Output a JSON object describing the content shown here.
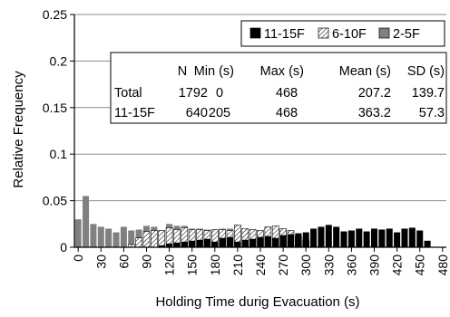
{
  "chart_data": {
    "type": "bar",
    "title": "",
    "xlabel": "Holding Time durig Evacuation (s)",
    "ylabel": "Relative Frequency",
    "ylim": [
      0,
      0.25
    ],
    "yticks": [
      "0",
      "0.05",
      "0.1",
      "0.15",
      "0.2",
      "0.25"
    ],
    "bin_width_s": 10,
    "x_tick_labels": [
      "0",
      "30",
      "60",
      "90",
      "120",
      "150",
      "180",
      "210",
      "240",
      "270",
      "300",
      "330",
      "360",
      "390",
      "420",
      "450",
      "480"
    ],
    "x_tick_values": [
      0,
      30,
      60,
      90,
      120,
      150,
      180,
      210,
      240,
      270,
      300,
      330,
      360,
      390,
      420,
      450,
      480
    ],
    "grid": "horizontal",
    "legend_position": "top-right",
    "series": [
      {
        "name": "11-15F",
        "color": "#000000",
        "pattern": "solid",
        "x": [
          110,
          120,
          130,
          140,
          150,
          160,
          170,
          180,
          190,
          200,
          210,
          220,
          230,
          240,
          250,
          260,
          270,
          280,
          290,
          300,
          310,
          320,
          330,
          340,
          350,
          360,
          370,
          380,
          390,
          400,
          410,
          420,
          430,
          440,
          450,
          460
        ],
        "values": [
          0.002,
          0.004,
          0.005,
          0.006,
          0.007,
          0.008,
          0.009,
          0.006,
          0.01,
          0.011,
          0.006,
          0.008,
          0.009,
          0.011,
          0.012,
          0.01,
          0.013,
          0.014,
          0.015,
          0.016,
          0.02,
          0.022,
          0.024,
          0.022,
          0.017,
          0.018,
          0.02,
          0.017,
          0.02,
          0.019,
          0.02,
          0.016,
          0.02,
          0.021,
          0.018,
          0.007
        ]
      },
      {
        "name": "6-10F",
        "color": "#000000",
        "pattern": "hatched",
        "x": [
          70,
          80,
          90,
          100,
          110,
          120,
          130,
          140,
          150,
          160,
          170,
          180,
          190,
          200,
          210,
          220,
          230,
          240,
          250,
          260,
          270,
          280,
          290,
          300
        ],
        "values": [
          0.003,
          0.01,
          0.017,
          0.018,
          0.018,
          0.021,
          0.019,
          0.021,
          0.019,
          0.019,
          0.018,
          0.019,
          0.019,
          0.018,
          0.024,
          0.02,
          0.019,
          0.018,
          0.022,
          0.023,
          0.02,
          0.018,
          0.012,
          0.008
        ]
      },
      {
        "name": "2-5F",
        "color": "#808080",
        "pattern": "solid",
        "x": [
          0,
          10,
          20,
          30,
          40,
          50,
          60,
          70,
          80,
          90,
          100,
          110,
          120,
          130,
          140,
          150,
          160,
          170,
          180,
          190,
          200,
          210,
          220,
          230,
          240,
          250,
          260,
          270
        ],
        "values": [
          0.03,
          0.055,
          0.025,
          0.022,
          0.02,
          0.016,
          0.022,
          0.018,
          0.019,
          0.023,
          0.022,
          0.018,
          0.025,
          0.023,
          0.023,
          0.02,
          0.02,
          0.019,
          0.017,
          0.02,
          0.02,
          0.015,
          0.019,
          0.018,
          0.016,
          0.014,
          0.012,
          0.008
        ]
      }
    ],
    "stats_table": {
      "header": [
        "",
        "N",
        "Min (s)",
        "Max (s)",
        "Mean (s)",
        "SD (s)"
      ],
      "rows": [
        [
          "Total",
          "1792",
          "0",
          "468",
          "207.2",
          "139.7"
        ],
        [
          "11-15F",
          "640",
          "205",
          "468",
          "363.2",
          "57.3"
        ]
      ]
    }
  }
}
